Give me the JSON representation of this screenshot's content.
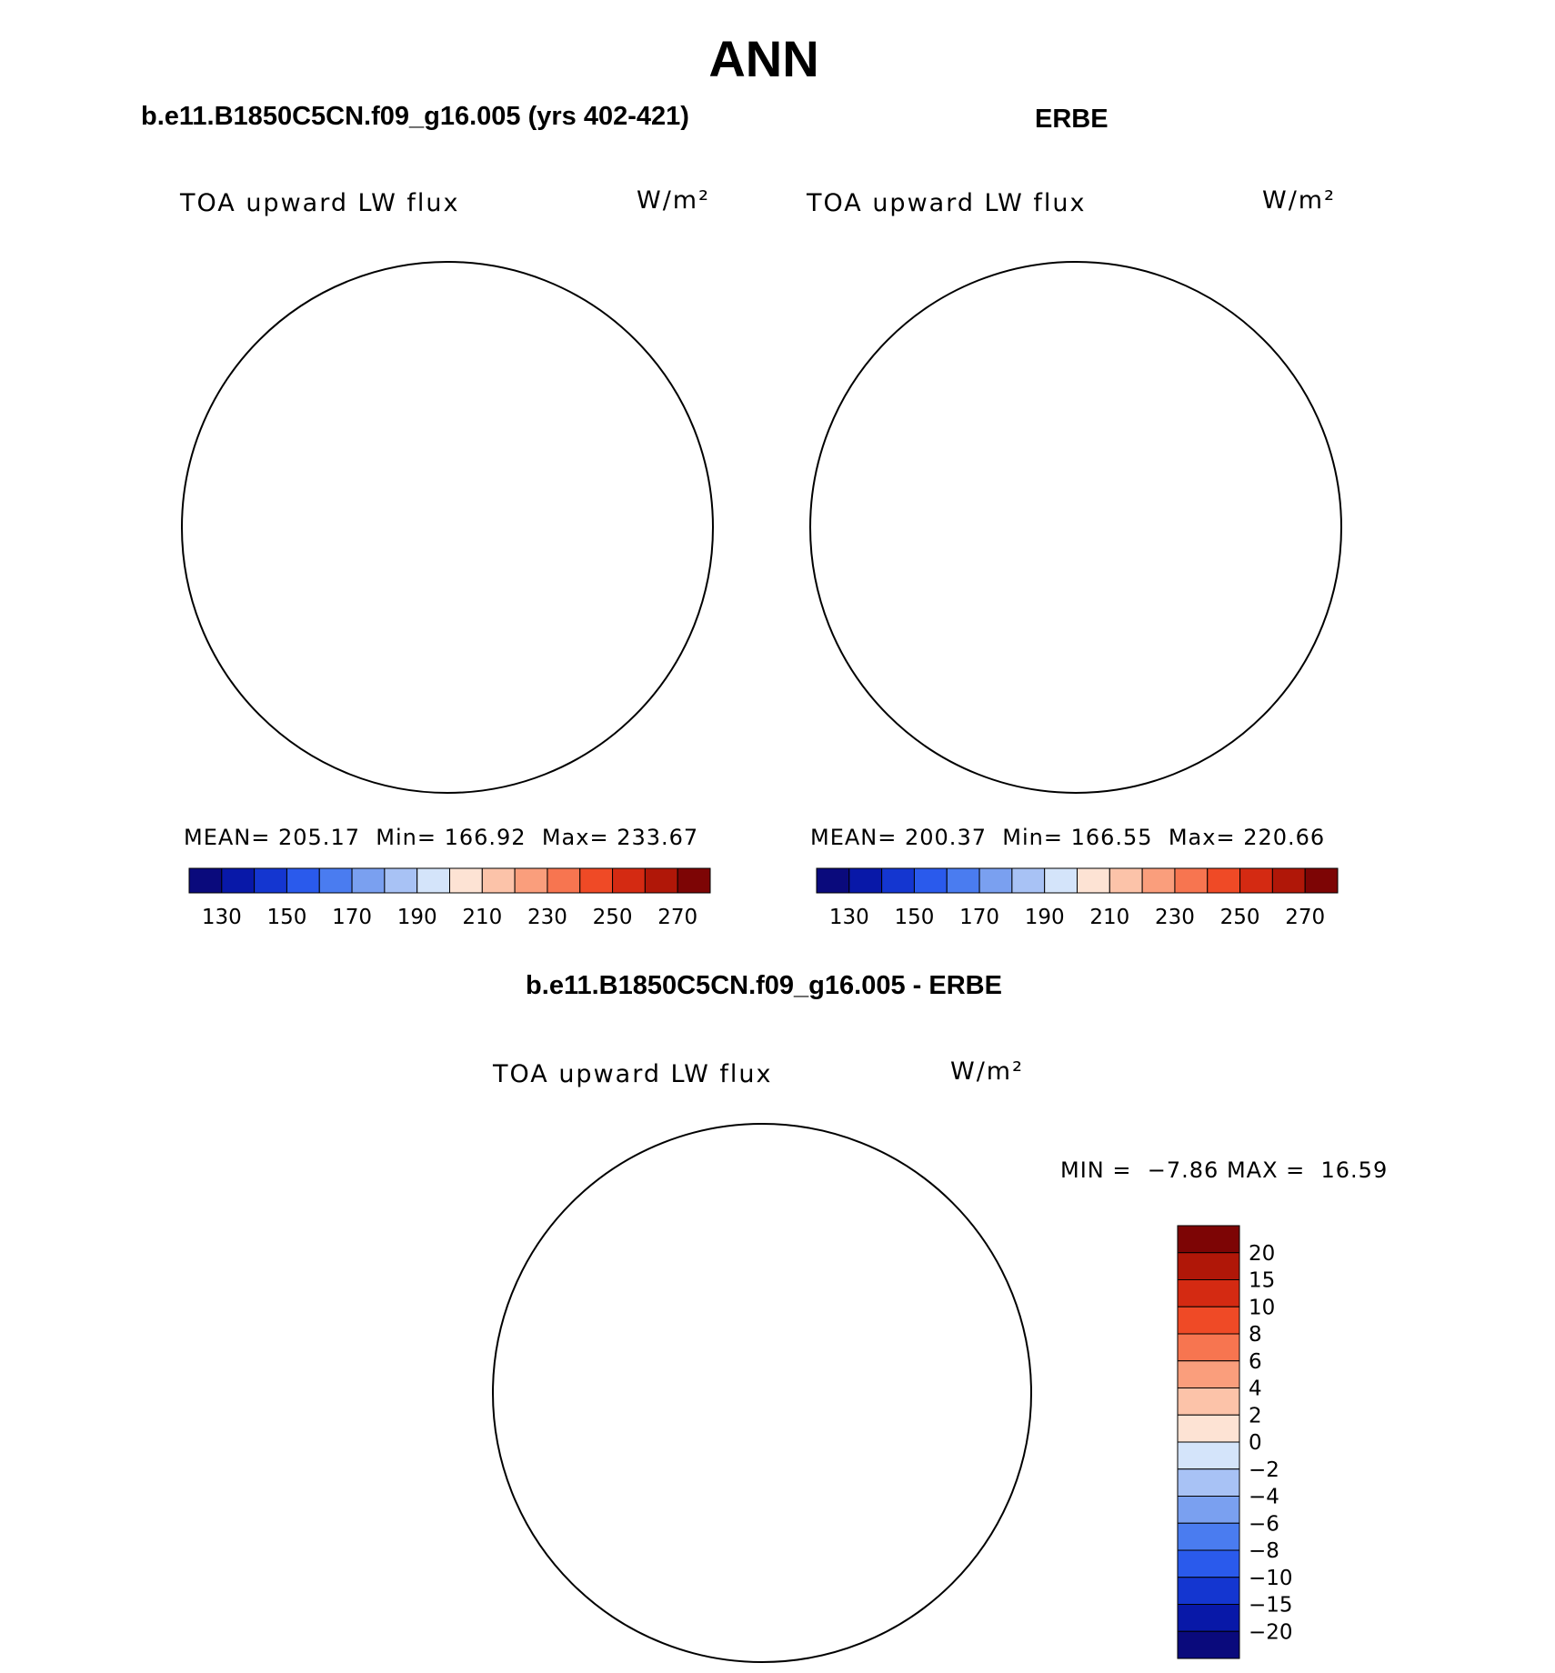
{
  "page": {
    "title": "ANN",
    "diff_title": "b.e11.B1850C5CN.f09_g16.005 - ERBE"
  },
  "panels": [
    {
      "title": "b.e11.B1850C5CN.f09_g16.005 (yrs 402-421)",
      "variable": "TOA upward LW flux",
      "units": "W/m²",
      "mean_label": "MEAN=",
      "mean": "205.17",
      "min_label": "Min=",
      "min": "166.92",
      "max_label": "Max=",
      "max": "233.67"
    },
    {
      "title": "ERBE",
      "variable": "TOA upward LW flux",
      "units": "W/m²",
      "mean_label": "MEAN=",
      "mean": "200.37",
      "min_label": "Min=",
      "min": "166.55",
      "max_label": "Max=",
      "max": "220.66"
    }
  ],
  "diff_panel": {
    "variable": "TOA upward LW flux",
    "units": "W/m²",
    "min_label": "MIN =",
    "min": "−7.86",
    "max_label": "MAX =",
    "max": "16.59"
  },
  "chart_data": [
    {
      "type": "heatmap",
      "map_projection": "north polar stereographic",
      "title": "b.e11.B1850C5CN.f09_g16.005 (yrs 402-421)",
      "field": "TOA upward LW flux",
      "units": "W/m2",
      "mean": 205.17,
      "min": 166.92,
      "max": 233.67,
      "colorbar_levels": [
        130,
        140,
        150,
        160,
        170,
        180,
        190,
        200,
        210,
        220,
        230,
        240,
        250,
        260,
        270
      ],
      "colorbar_tick_labels": [
        "130",
        "150",
        "170",
        "190",
        "210",
        "230",
        "250",
        "270"
      ]
    },
    {
      "type": "heatmap",
      "map_projection": "north polar stereographic",
      "title": "ERBE",
      "field": "TOA upward LW flux",
      "units": "W/m2",
      "mean": 200.37,
      "min": 166.55,
      "max": 220.66,
      "colorbar_levels": [
        130,
        140,
        150,
        160,
        170,
        180,
        190,
        200,
        210,
        220,
        230,
        240,
        250,
        260,
        270
      ],
      "colorbar_tick_labels": [
        "130",
        "150",
        "170",
        "190",
        "210",
        "230",
        "250",
        "270"
      ]
    },
    {
      "type": "heatmap",
      "map_projection": "north polar stereographic",
      "title": "b.e11.B1850C5CN.f09_g16.005 - ERBE",
      "field": "TOA upward LW flux",
      "units": "W/m2",
      "min": -7.86,
      "max": 16.59,
      "colorbar_levels": [
        -20,
        -15,
        -10,
        -8,
        -6,
        -4,
        -2,
        0,
        2,
        4,
        6,
        8,
        10,
        15,
        20
      ],
      "colorbar_tick_labels": [
        "20",
        "15",
        "10",
        "8",
        "6",
        "4",
        "2",
        "0",
        "−2",
        "−4",
        "−6",
        "−8",
        "−10",
        "−15",
        "−20"
      ]
    }
  ],
  "colors": {
    "abs_palette": [
      "#0a0a7c",
      "#0818a8",
      "#1436d0",
      "#2a5aec",
      "#4a7cf0",
      "#7aa0f0",
      "#a8c2f5",
      "#d4e4fa",
      "#fde3d4",
      "#fcc3a9",
      "#fa9e7c",
      "#f77550",
      "#ef4a26",
      "#d42a12",
      "#b01708",
      "#7d0505"
    ],
    "diff_palette": [
      "#7d0505",
      "#b01708",
      "#d42a12",
      "#ef4a26",
      "#f77550",
      "#fa9e7c",
      "#fcc3a9",
      "#fde3d4",
      "#d4e4fa",
      "#a8c2f5",
      "#7aa0f0",
      "#4a7cf0",
      "#2a5aec",
      "#1436d0",
      "#0818a8",
      "#0a0a7c"
    ]
  }
}
